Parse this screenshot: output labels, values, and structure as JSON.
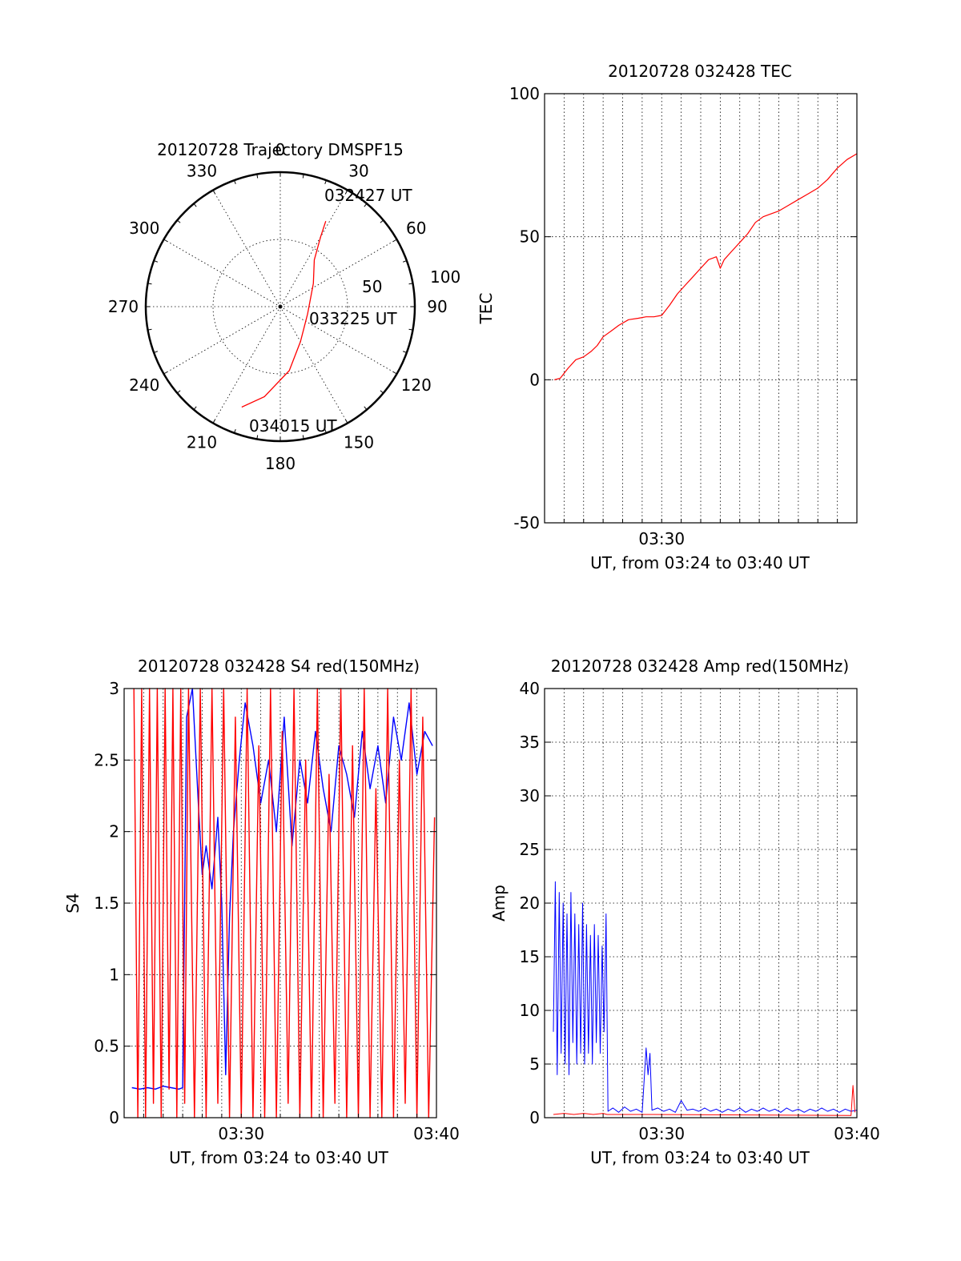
{
  "chart_data": [
    {
      "id": "trajectory",
      "type": "polar",
      "title": "20120728 Trajectory DMSPF15",
      "angle_labels": [
        "0",
        "30",
        "60",
        "90",
        "120",
        "150",
        "180",
        "210",
        "240",
        "270",
        "300",
        "330"
      ],
      "radius_labels": [
        "50",
        "100"
      ],
      "elevation_rings": [
        50,
        100
      ],
      "series": [
        {
          "color": "#ff0000",
          "points": [
            {
              "az": 28,
              "r": 72
            },
            {
              "az": 30,
              "r": 60
            },
            {
              "az": 36,
              "r": 43
            },
            {
              "az": 55,
              "r": 30
            },
            {
              "az": 105,
              "r": 21
            },
            {
              "az": 150,
              "r": 30
            },
            {
              "az": 172,
              "r": 48
            },
            {
              "az": 190,
              "r": 68
            },
            {
              "az": 201,
              "r": 80
            }
          ]
        }
      ],
      "annotations": [
        "032427 UT",
        "033225 UT",
        "034015 UT"
      ]
    },
    {
      "id": "tec",
      "type": "line",
      "title": "20120728 032428 TEC",
      "xlabel": "UT, from 03:24 to 03:40 UT",
      "ylabel": "TEC",
      "xlim": [
        24,
        40
      ],
      "ylim": [
        -50,
        100
      ],
      "yticks": [
        "-50",
        "0",
        "50",
        "100"
      ],
      "xticks": [
        {
          "value": 30,
          "label": "03:30"
        }
      ],
      "series": [
        {
          "color": "#ff0000",
          "points": [
            [
              24.5,
              0
            ],
            [
              24.8,
              0.5
            ],
            [
              25.2,
              4
            ],
            [
              25.6,
              7
            ],
            [
              26.0,
              8
            ],
            [
              26.4,
              10
            ],
            [
              26.7,
              12
            ],
            [
              27.0,
              15
            ],
            [
              27.4,
              17
            ],
            [
              27.8,
              19
            ],
            [
              28.3,
              21
            ],
            [
              28.8,
              21.5
            ],
            [
              29.2,
              22
            ],
            [
              29.6,
              22
            ],
            [
              30.0,
              22.5
            ],
            [
              30.4,
              26
            ],
            [
              30.8,
              30
            ],
            [
              31.2,
              33
            ],
            [
              31.6,
              36
            ],
            [
              32.0,
              39
            ],
            [
              32.4,
              42
            ],
            [
              32.8,
              43
            ],
            [
              33.0,
              39
            ],
            [
              33.2,
              42
            ],
            [
              33.6,
              45
            ],
            [
              34.0,
              48
            ],
            [
              34.4,
              51
            ],
            [
              34.8,
              55
            ],
            [
              35.2,
              57
            ],
            [
              35.6,
              58
            ],
            [
              36.0,
              59
            ],
            [
              36.5,
              61
            ],
            [
              37.0,
              63
            ],
            [
              37.5,
              65
            ],
            [
              38.0,
              67
            ],
            [
              38.5,
              70
            ],
            [
              39.0,
              74
            ],
            [
              39.5,
              77
            ],
            [
              40.0,
              79
            ]
          ]
        }
      ]
    },
    {
      "id": "s4",
      "type": "line",
      "title": "20120728 032428 S4 red(150MHz)",
      "xlabel": "UT, from 03:24 to 03:40 UT",
      "ylabel": "S4",
      "xlim": [
        24,
        40
      ],
      "ylim": [
        0,
        3
      ],
      "yticks": [
        "0",
        "0.5",
        "1",
        "1.5",
        "2",
        "2.5",
        "3"
      ],
      "xticks": [
        {
          "value": 30,
          "label": "03:30"
        },
        {
          "value": 40,
          "label": "03:40"
        }
      ],
      "series": [
        {
          "color": "#0000ff",
          "points": [
            [
              24.4,
              0.21
            ],
            [
              24.8,
              0.2
            ],
            [
              25.2,
              0.21
            ],
            [
              25.6,
              0.2
            ],
            [
              26.0,
              0.22
            ],
            [
              26.4,
              0.21
            ],
            [
              26.8,
              0.2
            ],
            [
              27.0,
              0.21
            ],
            [
              27.2,
              2.8
            ],
            [
              27.5,
              3.0
            ],
            [
              27.8,
              2.2
            ],
            [
              28.0,
              1.7
            ],
            [
              28.2,
              1.9
            ],
            [
              28.5,
              1.6
            ],
            [
              28.8,
              2.1
            ],
            [
              29.0,
              1.5
            ],
            [
              29.2,
              0.3
            ],
            [
              29.4,
              1.4
            ],
            [
              29.6,
              2.0
            ],
            [
              29.9,
              2.5
            ],
            [
              30.2,
              2.9
            ],
            [
              30.6,
              2.6
            ],
            [
              31.0,
              2.2
            ],
            [
              31.4,
              2.5
            ],
            [
              31.8,
              2.0
            ],
            [
              32.2,
              2.8
            ],
            [
              32.6,
              1.9
            ],
            [
              33.0,
              2.5
            ],
            [
              33.4,
              2.2
            ],
            [
              33.8,
              2.7
            ],
            [
              34.2,
              2.3
            ],
            [
              34.6,
              2.0
            ],
            [
              35.0,
              2.6
            ],
            [
              35.4,
              2.4
            ],
            [
              35.8,
              2.1
            ],
            [
              36.2,
              2.7
            ],
            [
              36.6,
              2.3
            ],
            [
              37.0,
              2.6
            ],
            [
              37.4,
              2.2
            ],
            [
              37.8,
              2.8
            ],
            [
              38.2,
              2.5
            ],
            [
              38.6,
              2.9
            ],
            [
              39.0,
              2.4
            ],
            [
              39.4,
              2.7
            ],
            [
              39.8,
              2.6
            ]
          ]
        },
        {
          "color": "#ff0000",
          "points": [
            [
              24.5,
              3.0
            ],
            [
              24.7,
              0.0
            ],
            [
              24.9,
              3.0
            ],
            [
              25.1,
              0.0
            ],
            [
              25.3,
              3.0
            ],
            [
              25.5,
              0.1
            ],
            [
              25.7,
              3.0
            ],
            [
              25.9,
              0.0
            ],
            [
              26.1,
              3.0
            ],
            [
              26.3,
              0.2
            ],
            [
              26.5,
              3.0
            ],
            [
              26.7,
              0.0
            ],
            [
              26.9,
              3.0
            ],
            [
              27.1,
              0.1
            ],
            [
              27.3,
              3.0
            ],
            [
              27.6,
              0.0
            ],
            [
              27.9,
              3.0
            ],
            [
              28.2,
              0.0
            ],
            [
              28.5,
              3.0
            ],
            [
              28.8,
              0.1
            ],
            [
              29.1,
              3.0
            ],
            [
              29.4,
              0.0
            ],
            [
              29.7,
              2.8
            ],
            [
              30.0,
              0.0
            ],
            [
              30.3,
              3.0
            ],
            [
              30.6,
              0.0
            ],
            [
              30.9,
              2.6
            ],
            [
              31.2,
              0.0
            ],
            [
              31.5,
              3.0
            ],
            [
              31.8,
              0.0
            ],
            [
              32.1,
              2.7
            ],
            [
              32.4,
              0.1
            ],
            [
              32.7,
              3.0
            ],
            [
              33.0,
              0.0
            ],
            [
              33.3,
              2.5
            ],
            [
              33.6,
              0.0
            ],
            [
              33.9,
              3.0
            ],
            [
              34.2,
              0.0
            ],
            [
              34.5,
              2.4
            ],
            [
              34.8,
              0.1
            ],
            [
              35.1,
              3.0
            ],
            [
              35.4,
              0.0
            ],
            [
              35.7,
              2.6
            ],
            [
              36.0,
              0.0
            ],
            [
              36.3,
              3.0
            ],
            [
              36.6,
              0.0
            ],
            [
              36.9,
              2.3
            ],
            [
              37.2,
              0.0
            ],
            [
              37.5,
              3.0
            ],
            [
              37.8,
              0.0
            ],
            [
              38.1,
              2.5
            ],
            [
              38.4,
              0.1
            ],
            [
              38.7,
              3.0
            ],
            [
              39.0,
              0.0
            ],
            [
              39.3,
              2.8
            ],
            [
              39.6,
              0.0
            ],
            [
              39.9,
              2.1
            ]
          ]
        }
      ]
    },
    {
      "id": "amp",
      "type": "line",
      "title": "20120728 032428 Amp red(150MHz)",
      "xlabel": "UT, from 03:24 to 03:40 UT",
      "ylabel": "Amp",
      "xlim": [
        24,
        40
      ],
      "ylim": [
        0,
        40
      ],
      "yticks": [
        "0",
        "5",
        "10",
        "15",
        "20",
        "25",
        "30",
        "35",
        "40"
      ],
      "xticks": [
        {
          "value": 30,
          "label": "03:30"
        },
        {
          "value": 40,
          "label": "03:40"
        }
      ],
      "series": [
        {
          "color": "#0000ff",
          "points": [
            [
              24.45,
              8
            ],
            [
              24.55,
              22
            ],
            [
              24.65,
              4
            ],
            [
              24.75,
              21
            ],
            [
              24.85,
              6
            ],
            [
              24.95,
              20
            ],
            [
              25.05,
              5
            ],
            [
              25.15,
              19
            ],
            [
              25.25,
              4
            ],
            [
              25.35,
              21
            ],
            [
              25.45,
              7
            ],
            [
              25.55,
              19
            ],
            [
              25.65,
              5
            ],
            [
              25.75,
              18
            ],
            [
              25.85,
              6
            ],
            [
              25.95,
              20
            ],
            [
              26.05,
              5
            ],
            [
              26.15,
              18
            ],
            [
              26.25,
              6
            ],
            [
              26.35,
              17
            ],
            [
              26.45,
              5
            ],
            [
              26.55,
              18
            ],
            [
              26.65,
              7
            ],
            [
              26.75,
              17
            ],
            [
              26.85,
              6
            ],
            [
              26.95,
              16
            ],
            [
              27.05,
              8
            ],
            [
              27.15,
              19
            ],
            [
              27.25,
              0.6
            ],
            [
              27.5,
              0.9
            ],
            [
              27.8,
              0.5
            ],
            [
              28.1,
              1.0
            ],
            [
              28.4,
              0.6
            ],
            [
              28.7,
              0.8
            ],
            [
              29.0,
              0.5
            ],
            [
              29.2,
              6.5
            ],
            [
              29.3,
              4.0
            ],
            [
              29.4,
              6.0
            ],
            [
              29.5,
              0.7
            ],
            [
              29.8,
              0.9
            ],
            [
              30.1,
              0.6
            ],
            [
              30.4,
              0.8
            ],
            [
              30.7,
              0.5
            ],
            [
              31.0,
              1.6
            ],
            [
              31.3,
              0.7
            ],
            [
              31.6,
              0.8
            ],
            [
              31.9,
              0.6
            ],
            [
              32.2,
              0.9
            ],
            [
              32.5,
              0.6
            ],
            [
              32.8,
              0.8
            ],
            [
              33.1,
              0.5
            ],
            [
              33.4,
              0.8
            ],
            [
              33.7,
              0.6
            ],
            [
              34.0,
              0.9
            ],
            [
              34.3,
              0.5
            ],
            [
              34.6,
              0.8
            ],
            [
              34.9,
              0.6
            ],
            [
              35.2,
              0.9
            ],
            [
              35.5,
              0.6
            ],
            [
              35.8,
              0.8
            ],
            [
              36.1,
              0.5
            ],
            [
              36.4,
              0.9
            ],
            [
              36.7,
              0.6
            ],
            [
              37.0,
              0.8
            ],
            [
              37.3,
              0.5
            ],
            [
              37.6,
              0.8
            ],
            [
              37.9,
              0.6
            ],
            [
              38.2,
              0.9
            ],
            [
              38.5,
              0.6
            ],
            [
              38.8,
              0.8
            ],
            [
              39.1,
              0.5
            ],
            [
              39.4,
              0.8
            ],
            [
              39.7,
              0.6
            ],
            [
              40.0,
              0.7
            ]
          ]
        },
        {
          "color": "#ff0000",
          "points": [
            [
              24.45,
              0.3
            ],
            [
              25.0,
              0.4
            ],
            [
              25.5,
              0.3
            ],
            [
              26.0,
              0.4
            ],
            [
              26.5,
              0.3
            ],
            [
              27.0,
              0.4
            ],
            [
              27.2,
              0.3
            ],
            [
              29.2,
              0.3
            ],
            [
              29.5,
              0.3
            ],
            [
              39.7,
              0.2
            ],
            [
              39.8,
              3.0
            ],
            [
              39.9,
              0.5
            ]
          ]
        }
      ]
    }
  ]
}
